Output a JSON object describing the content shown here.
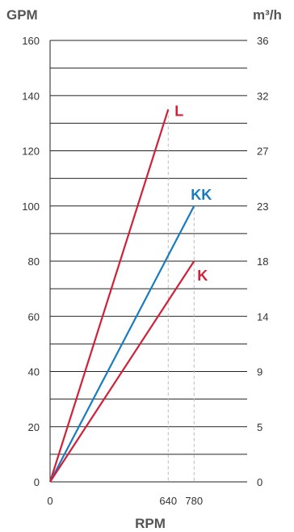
{
  "chart_data": {
    "type": "line",
    "ylabel_left": "GPM",
    "ylabel_right": "m³/h",
    "xlabel": "RPM",
    "ylim_left": [
      0,
      160
    ],
    "left_ticks": [
      0,
      20,
      40,
      60,
      80,
      100,
      120,
      140,
      160
    ],
    "right_tick_labels": [
      "0",
      "5",
      "9",
      "14",
      "18",
      "23",
      "27",
      "32",
      "36"
    ],
    "xlim": [
      0,
      1000
    ],
    "x_ticks": [
      0,
      640,
      780
    ],
    "grid": "horizontal every 10 GPM",
    "series": [
      {
        "name": "L",
        "color": "#d0203a",
        "points": [
          [
            0,
            0
          ],
          [
            640,
            135
          ]
        ]
      },
      {
        "name": "KK",
        "color": "#1a7bc0",
        "points": [
          [
            0,
            0
          ],
          [
            780,
            100
          ]
        ]
      },
      {
        "name": "K",
        "color": "#d0203a",
        "points": [
          [
            0,
            0
          ],
          [
            780,
            80
          ]
        ]
      }
    ]
  }
}
